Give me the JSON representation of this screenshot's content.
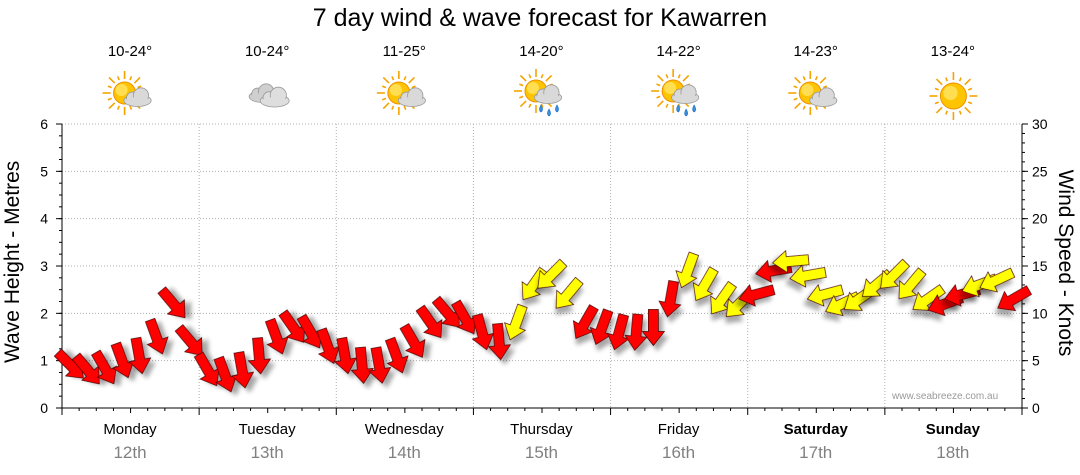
{
  "chart_data": {
    "type": "line",
    "title": "7 day wind & wave forecast for Kawarren",
    "left_axis": {
      "label": "Wave Height - Metres",
      "min": 0,
      "max": 6,
      "ticks": [
        0,
        1,
        2,
        3,
        4,
        5,
        6
      ]
    },
    "right_axis": {
      "label": "Wind Speed - Knots",
      "min": 0,
      "max": 30,
      "ticks": [
        0,
        5,
        10,
        15,
        20,
        25,
        30
      ]
    },
    "days": [
      {
        "day": "Monday",
        "date": "12th",
        "bold": false,
        "temp": "10-24°",
        "icon": "partly-cloudy-icon"
      },
      {
        "day": "Tuesday",
        "date": "13th",
        "bold": false,
        "temp": "10-24°",
        "icon": "cloudy-icon"
      },
      {
        "day": "Wednesday",
        "date": "14th",
        "bold": false,
        "temp": "11-25°",
        "icon": "partly-cloudy-icon"
      },
      {
        "day": "Thursday",
        "date": "15th",
        "bold": false,
        "temp": "14-20°",
        "icon": "shower-icon"
      },
      {
        "day": "Friday",
        "date": "16th",
        "bold": false,
        "temp": "14-22°",
        "icon": "shower-icon"
      },
      {
        "day": "Saturday",
        "date": "17th",
        "bold": true,
        "temp": "14-23°",
        "icon": "partly-cloudy-icon"
      },
      {
        "day": "Sunday",
        "date": "18th",
        "bold": true,
        "temp": "13-24°",
        "icon": "sunny-icon"
      }
    ],
    "wind_series": {
      "name": "Wind speed (knots) with direction arrows",
      "units": "knots",
      "hours_from_start": [
        0,
        3,
        6,
        9,
        12,
        15,
        18,
        21,
        24,
        27,
        30,
        33,
        36,
        39,
        42,
        45,
        48,
        51,
        54,
        57,
        60,
        63,
        66,
        69,
        72,
        75,
        78,
        81,
        84,
        87,
        90,
        93,
        96,
        99,
        102,
        105,
        108,
        111,
        114,
        117,
        120,
        123,
        126,
        129,
        132,
        135,
        138,
        141,
        144,
        147,
        150,
        153,
        156,
        159,
        162,
        165
      ],
      "speeds": [
        4.5,
        4.0,
        4.2,
        5.0,
        5.5,
        7.5,
        11.0,
        7.0,
        4.0,
        3.5,
        4.0,
        5.5,
        7.5,
        8.5,
        8.0,
        6.5,
        5.5,
        4.5,
        4.5,
        5.5,
        7.0,
        9.0,
        10.0,
        9.5,
        8.0,
        7.0,
        9.0,
        13.0,
        14.0,
        12.0,
        9.0,
        8.5,
        8.0,
        8.0,
        8.5,
        11.5,
        14.5,
        13.0,
        11.5,
        11.0,
        12.0,
        14.5,
        15.5,
        14.0,
        12.0,
        11.0,
        11.5,
        13.0,
        14.0,
        13.0,
        11.5,
        11.0,
        12.0,
        13.0,
        13.5,
        11.5
      ],
      "directions_deg": [
        135,
        140,
        150,
        160,
        170,
        160,
        140,
        140,
        150,
        160,
        170,
        175,
        160,
        145,
        150,
        160,
        170,
        175,
        170,
        160,
        150,
        145,
        140,
        150,
        165,
        175,
        200,
        215,
        225,
        220,
        210,
        200,
        195,
        185,
        180,
        190,
        200,
        210,
        215,
        225,
        255,
        260,
        265,
        260,
        255,
        245,
        235,
        230,
        225,
        220,
        235,
        250,
        255,
        250,
        245,
        240
      ],
      "colors": [
        "red",
        "red",
        "red",
        "red",
        "red",
        "red",
        "red",
        "red",
        "red",
        "red",
        "red",
        "red",
        "red",
        "red",
        "red",
        "red",
        "red",
        "red",
        "red",
        "red",
        "red",
        "red",
        "red",
        "red",
        "red",
        "red",
        "yellow",
        "yellow",
        "yellow",
        "yellow",
        "red",
        "red",
        "red",
        "red",
        "red",
        "red",
        "yellow",
        "yellow",
        "yellow",
        "yellow",
        "red",
        "red",
        "yellow",
        "yellow",
        "yellow",
        "yellow",
        "yellow",
        "yellow",
        "yellow",
        "yellow",
        "yellow",
        "red",
        "red",
        "yellow",
        "yellow",
        "red"
      ]
    },
    "legend": "none",
    "grid": true
  },
  "watermark": "www.seabreeze.com.au",
  "colors": {
    "strong_wind": "#ff0000",
    "moderate_wind": "#ffff00",
    "grid": "#b0b0b0",
    "axis_text": "#000000",
    "date_text": "#808080"
  }
}
